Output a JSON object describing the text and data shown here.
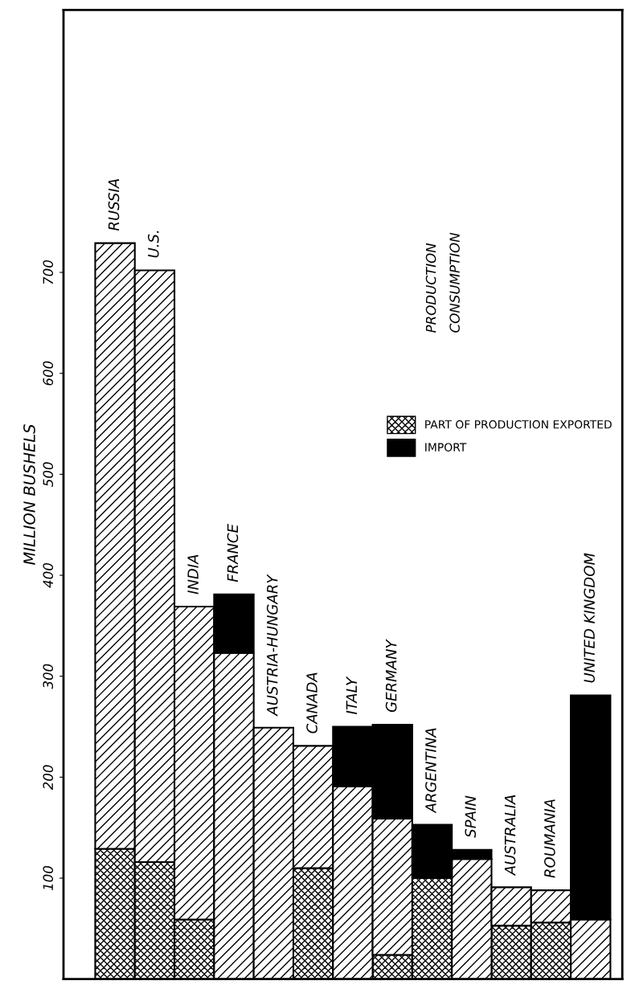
{
  "chart_data": {
    "type": "bar",
    "stacked": true,
    "ylabel": "MILLION BUSHELS",
    "categories": [
      "RUSSIA",
      "U.S.",
      "INDIA",
      "FRANCE",
      "AUSTRIA-HUNGARY",
      "CANADA",
      "ITALY",
      "GERMANY",
      "ARGENTINA",
      "SPAIN",
      "AUSTRALIA",
      "ROUMANIA",
      "UNITED KINGDOM"
    ],
    "series": [
      {
        "name": "PART OF PRODUCTION EXPORTED",
        "color": "#000000",
        "values": [
          129,
          116,
          59,
          null,
          null,
          110,
          null,
          24,
          100,
          null,
          53,
          56,
          null
        ]
      },
      {
        "color": "#000000",
        "values": [
          600,
          586,
          310,
          323,
          249,
          121,
          191,
          135,
          null,
          119,
          38,
          32,
          59
        ]
      },
      {
        "name": "IMPORT",
        "color": "#000000",
        "values": [
          null,
          null,
          null,
          58,
          null,
          null,
          59,
          93,
          53,
          9,
          null,
          null,
          222
        ]
      }
    ],
    "ylim": [
      0,
      960
    ],
    "yticks": [
      100,
      200,
      300,
      400,
      500,
      600,
      700
    ],
    "grid": false,
    "legend": "right",
    "annotations": [
      "PRODUCTION",
      "CONSUMPTION"
    ]
  }
}
